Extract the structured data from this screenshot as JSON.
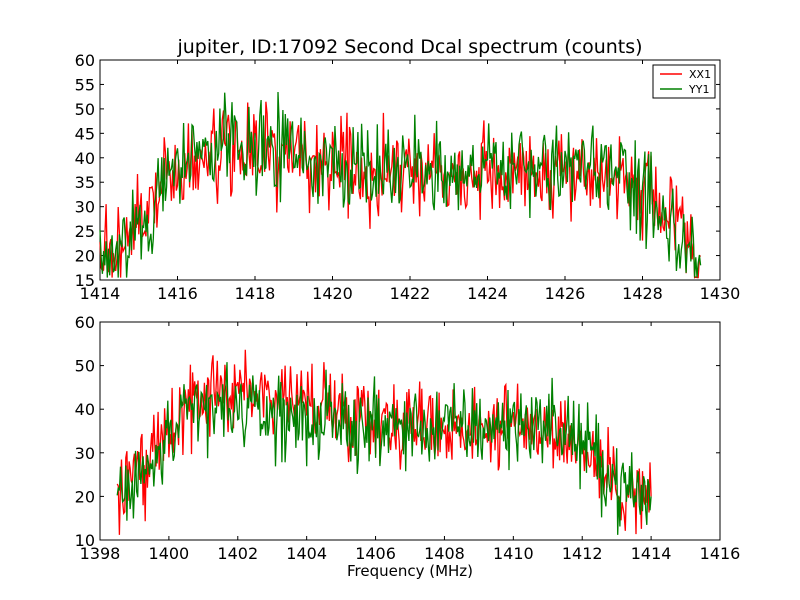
{
  "chart_data": [
    {
      "type": "line",
      "title": "jupiter, ID:17092 Second Dcal spectrum (counts)",
      "xlabel": "",
      "ylabel": "",
      "xlim": [
        1414,
        1430
      ],
      "ylim": [
        15,
        60
      ],
      "xticks": [
        1414,
        1416,
        1418,
        1420,
        1422,
        1424,
        1426,
        1428,
        1430
      ],
      "yticks": [
        15,
        20,
        25,
        30,
        35,
        40,
        45,
        50,
        55,
        60
      ],
      "grid": false,
      "legend": "top-right",
      "series": [
        {
          "name": "XX1",
          "color": "#ff0000",
          "x": [
            1414.0,
            1414.25,
            1414.5,
            1414.75,
            1415.0,
            1415.25,
            1415.5,
            1415.75,
            1416.0,
            1416.25,
            1416.5,
            1416.75,
            1417.0,
            1417.25,
            1417.5,
            1417.75,
            1418.0,
            1418.25,
            1418.5,
            1418.75,
            1419.0,
            1419.25,
            1419.5,
            1419.75,
            1420.0,
            1420.25,
            1420.5,
            1420.75,
            1421.0,
            1421.25,
            1421.5,
            1421.75,
            1422.0,
            1422.25,
            1422.5,
            1422.75,
            1423.0,
            1423.25,
            1423.5,
            1423.75,
            1424.0,
            1424.25,
            1424.5,
            1424.75,
            1425.0,
            1425.25,
            1425.5,
            1425.75,
            1426.0,
            1426.25,
            1426.5,
            1426.75,
            1427.0,
            1427.25,
            1427.5,
            1427.75,
            1428.0,
            1428.25,
            1428.5,
            1428.75,
            1429.0,
            1429.25,
            1429.5
          ],
          "values": [
            20,
            21,
            22,
            24,
            26,
            28,
            31,
            34,
            37,
            38,
            39,
            40,
            41,
            41,
            42,
            42,
            41,
            41,
            41,
            40,
            40,
            40,
            39,
            39,
            39,
            39,
            38,
            38,
            38,
            38,
            38,
            38,
            38,
            38,
            38,
            38,
            38,
            38,
            37,
            37,
            37,
            37,
            37,
            37,
            37,
            37,
            37,
            37,
            38,
            38,
            38,
            38,
            37,
            37,
            36,
            35,
            33,
            31,
            28,
            26,
            24,
            22,
            20
          ]
        },
        {
          "name": "YY1",
          "color": "#008000",
          "x": [
            1414.0,
            1414.25,
            1414.5,
            1414.75,
            1415.0,
            1415.25,
            1415.5,
            1415.75,
            1416.0,
            1416.25,
            1416.5,
            1416.75,
            1417.0,
            1417.25,
            1417.5,
            1417.75,
            1418.0,
            1418.25,
            1418.5,
            1418.75,
            1419.0,
            1419.25,
            1419.5,
            1419.75,
            1420.0,
            1420.25,
            1420.5,
            1420.75,
            1421.0,
            1421.25,
            1421.5,
            1421.75,
            1422.0,
            1422.25,
            1422.5,
            1422.75,
            1423.0,
            1423.25,
            1423.5,
            1423.75,
            1424.0,
            1424.25,
            1424.5,
            1424.75,
            1425.0,
            1425.25,
            1425.5,
            1425.75,
            1426.0,
            1426.25,
            1426.5,
            1426.75,
            1427.0,
            1427.25,
            1427.5,
            1427.75,
            1428.0,
            1428.25,
            1428.5,
            1428.75,
            1429.0,
            1429.25,
            1429.5
          ],
          "values": [
            20,
            20,
            21,
            23,
            25,
            28,
            31,
            35,
            38,
            39,
            40,
            41,
            42,
            42,
            43,
            43,
            43,
            42,
            42,
            41,
            40,
            40,
            39,
            39,
            39,
            39,
            38,
            38,
            38,
            38,
            38,
            38,
            38,
            38,
            38,
            38,
            38,
            38,
            38,
            38,
            38,
            38,
            38,
            38,
            38,
            38,
            38,
            38,
            38,
            38,
            38,
            38,
            37,
            37,
            36,
            35,
            32,
            30,
            27,
            25,
            22,
            20,
            18
          ]
        }
      ]
    },
    {
      "type": "line",
      "title": "",
      "xlabel": "Frequency (MHz)",
      "ylabel": "",
      "xlim": [
        1398,
        1416
      ],
      "ylim": [
        10,
        60
      ],
      "xticks": [
        1398,
        1400,
        1402,
        1404,
        1406,
        1408,
        1410,
        1412,
        1414,
        1416
      ],
      "yticks": [
        10,
        20,
        30,
        40,
        50,
        60
      ],
      "grid": false,
      "series": [
        {
          "color": "#ff0000",
          "x": [
            1398.5,
            1398.75,
            1399.0,
            1399.25,
            1399.5,
            1399.75,
            1400.0,
            1400.25,
            1400.5,
            1400.75,
            1401.0,
            1401.25,
            1401.5,
            1401.75,
            1402.0,
            1402.25,
            1402.5,
            1402.75,
            1403.0,
            1403.25,
            1403.5,
            1403.75,
            1404.0,
            1404.25,
            1404.5,
            1404.75,
            1405.0,
            1405.25,
            1405.5,
            1405.75,
            1406.0,
            1406.25,
            1406.5,
            1406.75,
            1407.0,
            1407.25,
            1407.5,
            1407.75,
            1408.0,
            1408.25,
            1408.5,
            1408.75,
            1409.0,
            1409.25,
            1409.5,
            1409.75,
            1410.0,
            1410.25,
            1410.5,
            1410.75,
            1411.0,
            1411.25,
            1411.5,
            1411.75,
            1412.0,
            1412.25,
            1412.5,
            1412.75,
            1413.0,
            1413.25,
            1413.5,
            1413.75,
            1414.0
          ],
          "values": [
            21,
            22,
            23,
            25,
            28,
            31,
            34,
            37,
            39,
            41,
            42,
            43,
            44,
            44,
            44,
            44,
            44,
            44,
            43,
            43,
            43,
            42,
            42,
            42,
            41,
            41,
            40,
            40,
            39,
            39,
            38,
            38,
            37,
            37,
            37,
            37,
            36,
            36,
            36,
            36,
            36,
            36,
            36,
            36,
            36,
            36,
            36,
            36,
            36,
            36,
            36,
            35,
            34,
            33,
            31,
            29,
            27,
            25,
            23,
            22,
            21,
            20,
            20
          ]
        },
        {
          "color": "#008000",
          "x": [
            1398.5,
            1398.75,
            1399.0,
            1399.25,
            1399.5,
            1399.75,
            1400.0,
            1400.25,
            1400.5,
            1400.75,
            1401.0,
            1401.25,
            1401.5,
            1401.75,
            1402.0,
            1402.25,
            1402.5,
            1402.75,
            1403.0,
            1403.25,
            1403.5,
            1403.75,
            1404.0,
            1404.25,
            1404.5,
            1404.75,
            1405.0,
            1405.25,
            1405.5,
            1405.75,
            1406.0,
            1406.25,
            1406.5,
            1406.75,
            1407.0,
            1407.25,
            1407.5,
            1407.75,
            1408.0,
            1408.25,
            1408.5,
            1408.75,
            1409.0,
            1409.25,
            1409.5,
            1409.75,
            1410.0,
            1410.25,
            1410.5,
            1410.75,
            1411.0,
            1411.25,
            1411.5,
            1411.75,
            1412.0,
            1412.25,
            1412.5,
            1412.75,
            1413.0,
            1413.25,
            1413.5,
            1413.75,
            1414.0
          ],
          "values": [
            20,
            21,
            22,
            24,
            27,
            30,
            33,
            35,
            37,
            39,
            40,
            40,
            40,
            40,
            40,
            40,
            39,
            39,
            39,
            38,
            38,
            38,
            38,
            37,
            37,
            37,
            37,
            36,
            36,
            36,
            36,
            36,
            36,
            36,
            36,
            36,
            36,
            36,
            36,
            36,
            36,
            36,
            36,
            36,
            36,
            36,
            37,
            37,
            37,
            37,
            37,
            36,
            35,
            34,
            32,
            30,
            28,
            25,
            23,
            22,
            21,
            20,
            20
          ]
        }
      ]
    }
  ]
}
